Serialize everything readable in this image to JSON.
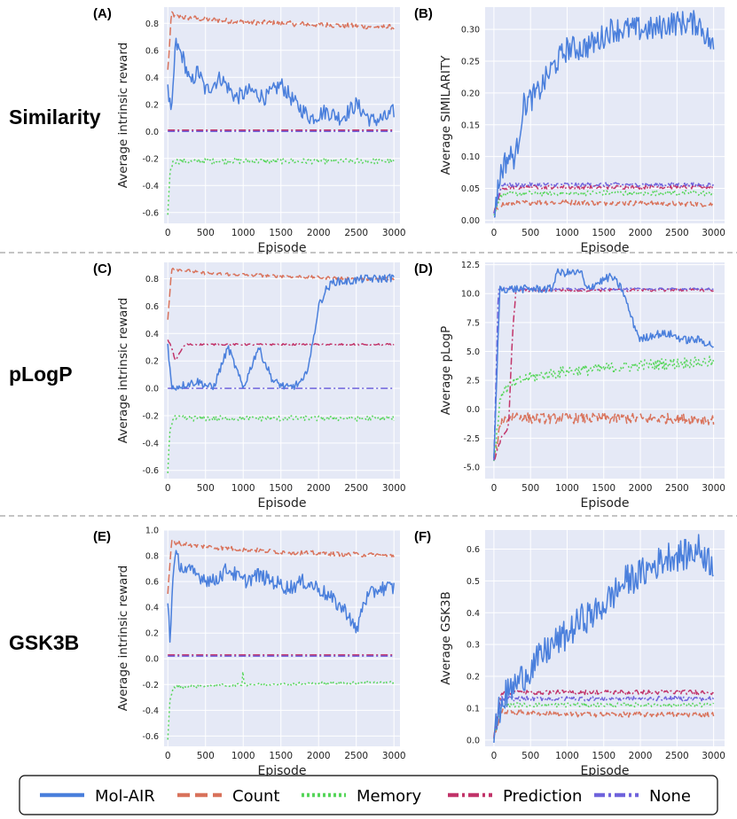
{
  "rows": [
    {
      "name": "Similarity"
    },
    {
      "name": "pLogP"
    },
    {
      "name": "GSK3B"
    }
  ],
  "legend": {
    "items": [
      {
        "label": "Mol-AIR",
        "color": "#4a7fdc",
        "dash": "solid"
      },
      {
        "label": "Count",
        "color": "#d9735c",
        "dash": "dashed"
      },
      {
        "label": "Memory",
        "color": "#56d65a",
        "dash": "dotted"
      },
      {
        "label": "Prediction",
        "color": "#c2356a",
        "dash": "dashdot"
      },
      {
        "label": "None",
        "color": "#7064dc",
        "dash": "dashdot"
      }
    ]
  },
  "chart_data": [
    {
      "panel": "(A)",
      "type": "line",
      "xlabel": "Episode",
      "ylabel": "Average intrinsic reward",
      "xlim": [
        -50,
        3080
      ],
      "ylim": [
        -0.68,
        0.92
      ],
      "xticks": [
        0,
        500,
        1000,
        1500,
        2000,
        2500,
        3000
      ],
      "yticks": [
        -0.6,
        -0.4,
        -0.2,
        0.0,
        0.2,
        0.4,
        0.6,
        0.8
      ],
      "ytick_labels": [
        "-0.6",
        "-0.4",
        "-0.2",
        "0.0",
        "0.2",
        "0.4",
        "0.6",
        "0.8"
      ],
      "series": [
        {
          "name": "Count",
          "x": [
            0,
            50,
            100,
            500,
            1000,
            1500,
            2000,
            2500,
            3000
          ],
          "y": [
            0.45,
            0.88,
            0.85,
            0.83,
            0.81,
            0.8,
            0.79,
            0.78,
            0.77
          ],
          "noise": 0.02
        },
        {
          "name": "Mol-AIR",
          "x": [
            0,
            50,
            100,
            200,
            300,
            400,
            500,
            700,
            900,
            1100,
            1300,
            1500,
            1700,
            1900,
            2100,
            2300,
            2500,
            2700,
            2900,
            3000
          ],
          "y": [
            0.3,
            0.1,
            0.65,
            0.55,
            0.35,
            0.45,
            0.3,
            0.4,
            0.25,
            0.3,
            0.25,
            0.35,
            0.2,
            0.1,
            0.15,
            0.1,
            0.2,
            0.08,
            0.1,
            0.15
          ],
          "noise": 0.06
        },
        {
          "name": "Prediction",
          "x": [
            0,
            50,
            3000
          ],
          "y": [
            0.01,
            0.01,
            0.01
          ],
          "noise": 0.0
        },
        {
          "name": "None",
          "x": [
            0,
            3000
          ],
          "y": [
            0.0,
            0.0
          ],
          "noise": 0.0
        },
        {
          "name": "Memory",
          "x": [
            0,
            30,
            80,
            3000
          ],
          "y": [
            -0.62,
            -0.28,
            -0.22,
            -0.22
          ],
          "noise": 0.02
        }
      ]
    },
    {
      "panel": "(B)",
      "type": "line",
      "xlabel": "Episode",
      "ylabel": "Average SIMILARITY",
      "xlim": [
        -120,
        3150
      ],
      "ylim": [
        -0.005,
        0.335
      ],
      "xticks": [
        0,
        500,
        1000,
        1500,
        2000,
        2500,
        3000
      ],
      "yticks": [
        0.0,
        0.05,
        0.1,
        0.15,
        0.2,
        0.25,
        0.3
      ],
      "ytick_labels": [
        "0.00",
        "0.05",
        "0.10",
        "0.15",
        "0.20",
        "0.25",
        "0.30"
      ],
      "series": [
        {
          "name": "Count",
          "x": [
            0,
            100,
            500,
            1000,
            1500,
            2000,
            2500,
            3000
          ],
          "y": [
            0.01,
            0.025,
            0.028,
            0.028,
            0.027,
            0.027,
            0.026,
            0.025
          ],
          "noise": 0.004
        },
        {
          "name": "Memory",
          "x": [
            0,
            100,
            500,
            1000,
            1500,
            2000,
            2500,
            3000
          ],
          "y": [
            0.01,
            0.04,
            0.042,
            0.042,
            0.043,
            0.042,
            0.043,
            0.042
          ],
          "noise": 0.004
        },
        {
          "name": "Prediction",
          "x": [
            0,
            100,
            500,
            1000,
            1500,
            2000,
            2500,
            3000
          ],
          "y": [
            0.01,
            0.05,
            0.052,
            0.052,
            0.052,
            0.052,
            0.052,
            0.052
          ],
          "noise": 0.003
        },
        {
          "name": "None",
          "x": [
            0,
            100,
            500,
            1000,
            1500,
            2000,
            2500,
            3000
          ],
          "y": [
            0.01,
            0.055,
            0.056,
            0.056,
            0.056,
            0.056,
            0.056,
            0.056
          ],
          "noise": 0.003
        },
        {
          "name": "Mol-AIR",
          "x": [
            0,
            100,
            200,
            300,
            400,
            600,
            800,
            1000,
            1200,
            1400,
            1600,
            1800,
            2000,
            2200,
            2400,
            2600,
            2800,
            3000
          ],
          "y": [
            0.01,
            0.08,
            0.1,
            0.1,
            0.18,
            0.2,
            0.24,
            0.27,
            0.27,
            0.28,
            0.3,
            0.3,
            0.3,
            0.3,
            0.31,
            0.31,
            0.31,
            0.27
          ],
          "noise": 0.02
        }
      ]
    },
    {
      "panel": "(C)",
      "type": "line",
      "xlabel": "Episode",
      "ylabel": "Average intrinsic reward",
      "xlim": [
        -50,
        3080
      ],
      "ylim": [
        -0.66,
        0.92
      ],
      "xticks": [
        0,
        500,
        1000,
        1500,
        2000,
        2500,
        3000
      ],
      "yticks": [
        -0.6,
        -0.4,
        -0.2,
        0.0,
        0.2,
        0.4,
        0.6,
        0.8
      ],
      "ytick_labels": [
        "-0.6",
        "-0.4",
        "-0.2",
        "0.0",
        "0.2",
        "0.4",
        "0.6",
        "0.8"
      ],
      "series": [
        {
          "name": "Count",
          "x": [
            0,
            50,
            100,
            500,
            1000,
            1500,
            2000,
            2500,
            3000
          ],
          "y": [
            0.5,
            0.88,
            0.87,
            0.84,
            0.83,
            0.82,
            0.81,
            0.8,
            0.8
          ],
          "noise": 0.012
        },
        {
          "name": "None",
          "x": [
            0,
            3000
          ],
          "y": [
            0.0,
            0.0
          ],
          "noise": 0.0
        },
        {
          "name": "Mol-AIR",
          "x": [
            0,
            50,
            100,
            400,
            600,
            800,
            1000,
            1200,
            1400,
            1600,
            1800,
            1900,
            2000,
            2100,
            2200,
            2400,
            2600,
            2800,
            3000
          ],
          "y": [
            0.32,
            0.0,
            0.01,
            0.05,
            0.0,
            0.3,
            0.0,
            0.3,
            0.05,
            0.0,
            0.05,
            0.25,
            0.6,
            0.72,
            0.78,
            0.78,
            0.8,
            0.8,
            0.81
          ],
          "noise": 0.03
        },
        {
          "name": "Prediction",
          "x": [
            0,
            50,
            100,
            150,
            200,
            250,
            3000
          ],
          "y": [
            0.35,
            0.3,
            0.2,
            0.25,
            0.3,
            0.32,
            0.32
          ],
          "noise": 0.006
        },
        {
          "name": "Memory",
          "x": [
            0,
            30,
            80,
            3000
          ],
          "y": [
            -0.6,
            -0.28,
            -0.22,
            -0.22
          ],
          "noise": 0.02
        }
      ]
    },
    {
      "panel": "(D)",
      "type": "line",
      "xlabel": "Episode",
      "ylabel": "Average pLogP",
      "xlim": [
        -120,
        3150
      ],
      "ylim": [
        -6.0,
        12.7
      ],
      "xticks": [
        0,
        500,
        1000,
        1500,
        2000,
        2500,
        3000
      ],
      "yticks": [
        -5.0,
        -2.5,
        0.0,
        2.5,
        5.0,
        7.5,
        10.0,
        12.5
      ],
      "ytick_labels": [
        "-5.0",
        "-2.5",
        "0.0",
        "2.5",
        "5.0",
        "7.5",
        "10.0",
        "12.5"
      ],
      "series": [
        {
          "name": "Count",
          "x": [
            0,
            100,
            300,
            500,
            1000,
            1500,
            2000,
            2500,
            3000
          ],
          "y": [
            -4.5,
            -1.0,
            -0.5,
            -0.8,
            -0.8,
            -0.8,
            -0.8,
            -0.8,
            -0.9
          ],
          "noise": 0.45
        },
        {
          "name": "Memory",
          "x": [
            0,
            100,
            300,
            500,
            1000,
            1500,
            2000,
            2500,
            3000
          ],
          "y": [
            -4.5,
            1.5,
            2.3,
            2.8,
            3.3,
            3.5,
            3.8,
            4.0,
            4.1
          ],
          "noise": 0.5
        },
        {
          "name": "Prediction",
          "x": [
            0,
            100,
            200,
            250,
            300,
            3000
          ],
          "y": [
            -4.5,
            -2.5,
            -1.5,
            6.0,
            10.3,
            10.3
          ],
          "noise": 0.12
        },
        {
          "name": "None",
          "x": [
            0,
            60,
            100,
            3000
          ],
          "y": [
            -4.5,
            10.4,
            10.4,
            10.4
          ],
          "noise": 0.08
        },
        {
          "name": "Mol-AIR",
          "x": [
            0,
            80,
            120,
            800,
            850,
            1200,
            1250,
            1600,
            1750,
            1900,
            2000,
            2200,
            2400,
            2600,
            2800,
            3000
          ],
          "y": [
            -4.5,
            10.4,
            10.4,
            10.4,
            11.8,
            11.8,
            10.4,
            11.5,
            10.4,
            7.5,
            6.0,
            6.5,
            6.5,
            6.0,
            6.0,
            5.5
          ],
          "noise": 0.35
        }
      ]
    },
    {
      "panel": "(E)",
      "type": "line",
      "xlabel": "Episode",
      "ylabel": "Average intrinsic reward",
      "xlim": [
        -50,
        3080
      ],
      "ylim": [
        -0.68,
        1.0
      ],
      "xticks": [
        0,
        500,
        1000,
        1500,
        2000,
        2500,
        3000
      ],
      "yticks": [
        -0.6,
        -0.4,
        -0.2,
        0.0,
        0.2,
        0.4,
        0.6,
        0.8,
        1.0
      ],
      "ytick_labels": [
        "-0.6",
        "-0.4",
        "-0.2",
        "0.0",
        "0.2",
        "0.4",
        "0.6",
        "0.8",
        "1.0"
      ],
      "series": [
        {
          "name": "Count",
          "x": [
            0,
            50,
            100,
            500,
            1000,
            1500,
            2000,
            2500,
            3000
          ],
          "y": [
            0.5,
            0.92,
            0.9,
            0.87,
            0.85,
            0.83,
            0.82,
            0.81,
            0.8
          ],
          "noise": 0.018
        },
        {
          "name": "Mol-AIR",
          "x": [
            0,
            30,
            60,
            100,
            200,
            400,
            600,
            800,
            1000,
            1200,
            1400,
            1600,
            1800,
            2000,
            2200,
            2400,
            2500,
            2600,
            2800,
            3000
          ],
          "y": [
            0.45,
            0.15,
            0.55,
            0.8,
            0.7,
            0.65,
            0.6,
            0.7,
            0.6,
            0.65,
            0.6,
            0.55,
            0.6,
            0.55,
            0.45,
            0.35,
            0.2,
            0.45,
            0.55,
            0.55
          ],
          "noise": 0.06
        },
        {
          "name": "Prediction",
          "x": [
            0,
            50,
            3000
          ],
          "y": [
            0.03,
            0.03,
            0.03
          ],
          "noise": 0.0
        },
        {
          "name": "None",
          "x": [
            0,
            3000
          ],
          "y": [
            0.02,
            0.02
          ],
          "noise": 0.0
        },
        {
          "name": "Memory",
          "x": [
            0,
            30,
            80,
            990,
            1000,
            1010,
            3000
          ],
          "y": [
            -0.62,
            -0.3,
            -0.22,
            -0.2,
            0.0,
            -0.2,
            -0.18
          ],
          "noise": 0.012
        }
      ]
    },
    {
      "panel": "(F)",
      "type": "line",
      "xlabel": "Episode",
      "ylabel": "Average GSK3B",
      "xlim": [
        -120,
        3150
      ],
      "ylim": [
        -0.02,
        0.66
      ],
      "xticks": [
        0,
        500,
        1000,
        1500,
        2000,
        2500,
        3000
      ],
      "yticks": [
        0.0,
        0.1,
        0.2,
        0.3,
        0.4,
        0.5,
        0.6
      ],
      "ytick_labels": [
        "0.0",
        "0.1",
        "0.2",
        "0.3",
        "0.4",
        "0.5",
        "0.6"
      ],
      "series": [
        {
          "name": "Count",
          "x": [
            0,
            100,
            500,
            1000,
            1500,
            2000,
            2500,
            3000
          ],
          "y": [
            0.01,
            0.09,
            0.085,
            0.08,
            0.08,
            0.08,
            0.08,
            0.08
          ],
          "noise": 0.008
        },
        {
          "name": "Memory",
          "x": [
            0,
            100,
            500,
            1000,
            1500,
            2000,
            2500,
            3000
          ],
          "y": [
            0.01,
            0.11,
            0.11,
            0.11,
            0.11,
            0.11,
            0.11,
            0.11
          ],
          "noise": 0.007
        },
        {
          "name": "None",
          "x": [
            0,
            100,
            500,
            1000,
            1500,
            2000,
            2500,
            3000
          ],
          "y": [
            0.01,
            0.13,
            0.13,
            0.13,
            0.13,
            0.13,
            0.13,
            0.13
          ],
          "noise": 0.007
        },
        {
          "name": "Prediction",
          "x": [
            0,
            100,
            500,
            1000,
            1500,
            2000,
            2500,
            3000
          ],
          "y": [
            0.01,
            0.15,
            0.15,
            0.15,
            0.15,
            0.15,
            0.15,
            0.15
          ],
          "noise": 0.007
        },
        {
          "name": "Mol-AIR",
          "x": [
            0,
            100,
            200,
            400,
            600,
            800,
            1000,
            1200,
            1400,
            1600,
            1800,
            2000,
            2200,
            2400,
            2600,
            2800,
            3000
          ],
          "y": [
            0.01,
            0.12,
            0.15,
            0.2,
            0.25,
            0.3,
            0.33,
            0.38,
            0.4,
            0.45,
            0.5,
            0.52,
            0.55,
            0.58,
            0.58,
            0.6,
            0.55
          ],
          "noise": 0.05
        }
      ]
    }
  ]
}
